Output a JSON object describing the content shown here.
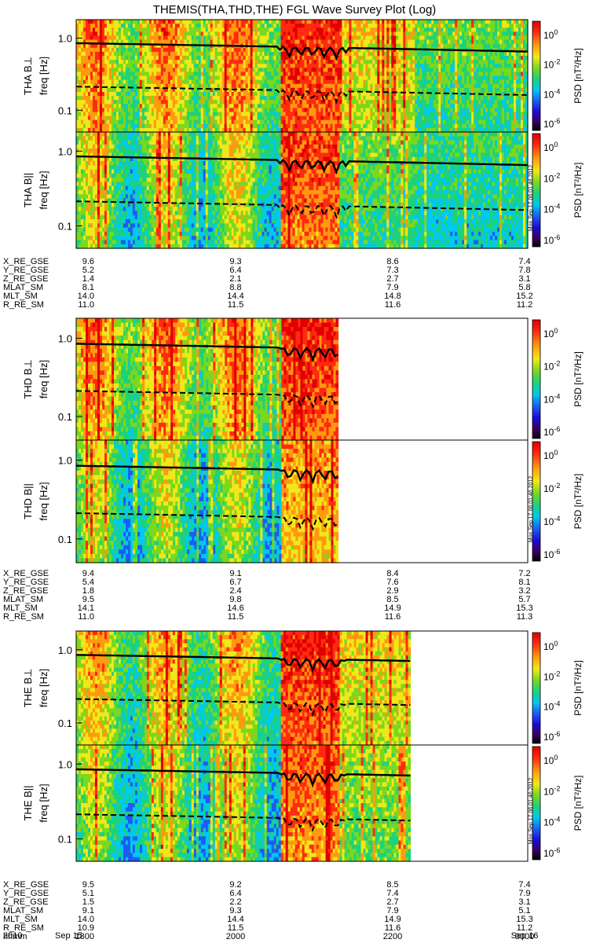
{
  "title": "THEMIS(THA,THD,THE) FGL Wave Survey Plot (Log)",
  "colors": {
    "palette": [
      "#000000",
      "#3a0060",
      "#1b0ad8",
      "#1d5cf2",
      "#00c8ee",
      "#1ed27a",
      "#7ad81e",
      "#f0e81a",
      "#ff9a10",
      "#ff2a10",
      "#e00000"
    ],
    "trace": "#000000",
    "background": "#ffffff"
  },
  "yaxis": {
    "label": "freq [Hz]",
    "ticks": [
      "1.0",
      "0.1"
    ],
    "scale": "log"
  },
  "colorbar": {
    "label": "PSD [nT²/Hz]",
    "ticks": [
      {
        "base": "10",
        "exp": "0"
      },
      {
        "base": "10",
        "exp": "-2"
      },
      {
        "base": "10",
        "exp": "-4"
      },
      {
        "base": "10",
        "exp": "-6"
      }
    ],
    "stamp": "Mon Sep 17 06:01:46 2012"
  },
  "chart_data": [
    {
      "type": "heatmap",
      "probe": "tha",
      "panel_label": "THA B⊥",
      "coverage": [
        0,
        1.0
      ],
      "activity": [
        0,
        0.55,
        0.9,
        0.35,
        0.3
      ]
    },
    {
      "type": "heatmap",
      "probe": "tha",
      "panel_label": "THA B||",
      "coverage": [
        0,
        1.0
      ],
      "activity": [
        0,
        0.35,
        0.85,
        0.1,
        0.2
      ]
    },
    {
      "type": "heatmap",
      "probe": "thd",
      "panel_label": "THD B⊥",
      "coverage": [
        0,
        0.58
      ],
      "activity": [
        0,
        0.55,
        0.9,
        0.35,
        0.3
      ]
    },
    {
      "type": "heatmap",
      "probe": "thd",
      "panel_label": "THD B||",
      "coverage": [
        0,
        0.58
      ],
      "activity": [
        0,
        0.3,
        0.7,
        0.2,
        0.2
      ]
    },
    {
      "type": "heatmap",
      "probe": "the",
      "panel_label": "THE B⊥",
      "coverage": [
        0,
        0.74
      ],
      "activity": [
        0,
        0.45,
        0.9,
        0.35,
        0.3
      ]
    },
    {
      "type": "heatmap",
      "probe": "the",
      "panel_label": "THE B||",
      "coverage": [
        0,
        0.74
      ],
      "activity": [
        0,
        0.3,
        0.8,
        0.2,
        0.2
      ]
    }
  ],
  "ephemeris": [
    {
      "rows": [
        {
          "label": "X_RE_GSE",
          "values": [
            "9.6",
            "9.3",
            "8.6",
            "7.4"
          ]
        },
        {
          "label": "Y_RE_GSE",
          "values": [
            "5.2",
            "6.4",
            "7.3",
            "7.8"
          ]
        },
        {
          "label": "Z_RE_GSE",
          "values": [
            "1.4",
            "2.1",
            "2.7",
            "3.1"
          ]
        },
        {
          "label": "MLAT_SM",
          "values": [
            "8.1",
            "8.8",
            "7.9",
            "5.8"
          ]
        },
        {
          "label": "MLT_SM",
          "values": [
            "14.0",
            "14.4",
            "14.8",
            "15.2"
          ]
        },
        {
          "label": "R_RE_SM",
          "values": [
            "11.0",
            "11.5",
            "11.6",
            "11.2"
          ]
        }
      ]
    },
    {
      "rows": [
        {
          "label": "X_RE_GSE",
          "values": [
            "9.4",
            "9.1",
            "8.4",
            "7.2"
          ]
        },
        {
          "label": "Y_RE_GSE",
          "values": [
            "5.4",
            "6.7",
            "7.6",
            "8.1"
          ]
        },
        {
          "label": "Z_RE_GSE",
          "values": [
            "1.8",
            "2.4",
            "2.9",
            "3.2"
          ]
        },
        {
          "label": "MLAT_SM",
          "values": [
            "9.5",
            "9.8",
            "8.5",
            "5.7"
          ]
        },
        {
          "label": "MLT_SM",
          "values": [
            "14.1",
            "14.6",
            "14.9",
            "15.3"
          ]
        },
        {
          "label": "R_RE_SM",
          "values": [
            "11.0",
            "11.5",
            "11.6",
            "11.3"
          ]
        }
      ]
    },
    {
      "rows": [
        {
          "label": "X_RE_GSE",
          "values": [
            "9.5",
            "9.2",
            "8.5",
            "7.4"
          ]
        },
        {
          "label": "Y_RE_GSE",
          "values": [
            "5.1",
            "6.4",
            "7.4",
            "7.9"
          ]
        },
        {
          "label": "Z_RE_GSE",
          "values": [
            "1.5",
            "2.2",
            "2.7",
            "3.1"
          ]
        },
        {
          "label": "MLAT_SM",
          "values": [
            "9.1",
            "9.3",
            "7.9",
            "5.1"
          ]
        },
        {
          "label": "MLT_SM",
          "values": [
            "14.0",
            "14.4",
            "14.9",
            "15.3"
          ]
        },
        {
          "label": "R_RE_SM",
          "values": [
            "10.9",
            "11.5",
            "11.6",
            "11.2"
          ]
        },
        {
          "label": "hhmm",
          "values": [
            "1800",
            "2000",
            "2200",
            "0000"
          ]
        }
      ]
    }
  ],
  "date_row": {
    "year": "2010",
    "start": "Sep 15",
    "end": "Sep 16"
  }
}
